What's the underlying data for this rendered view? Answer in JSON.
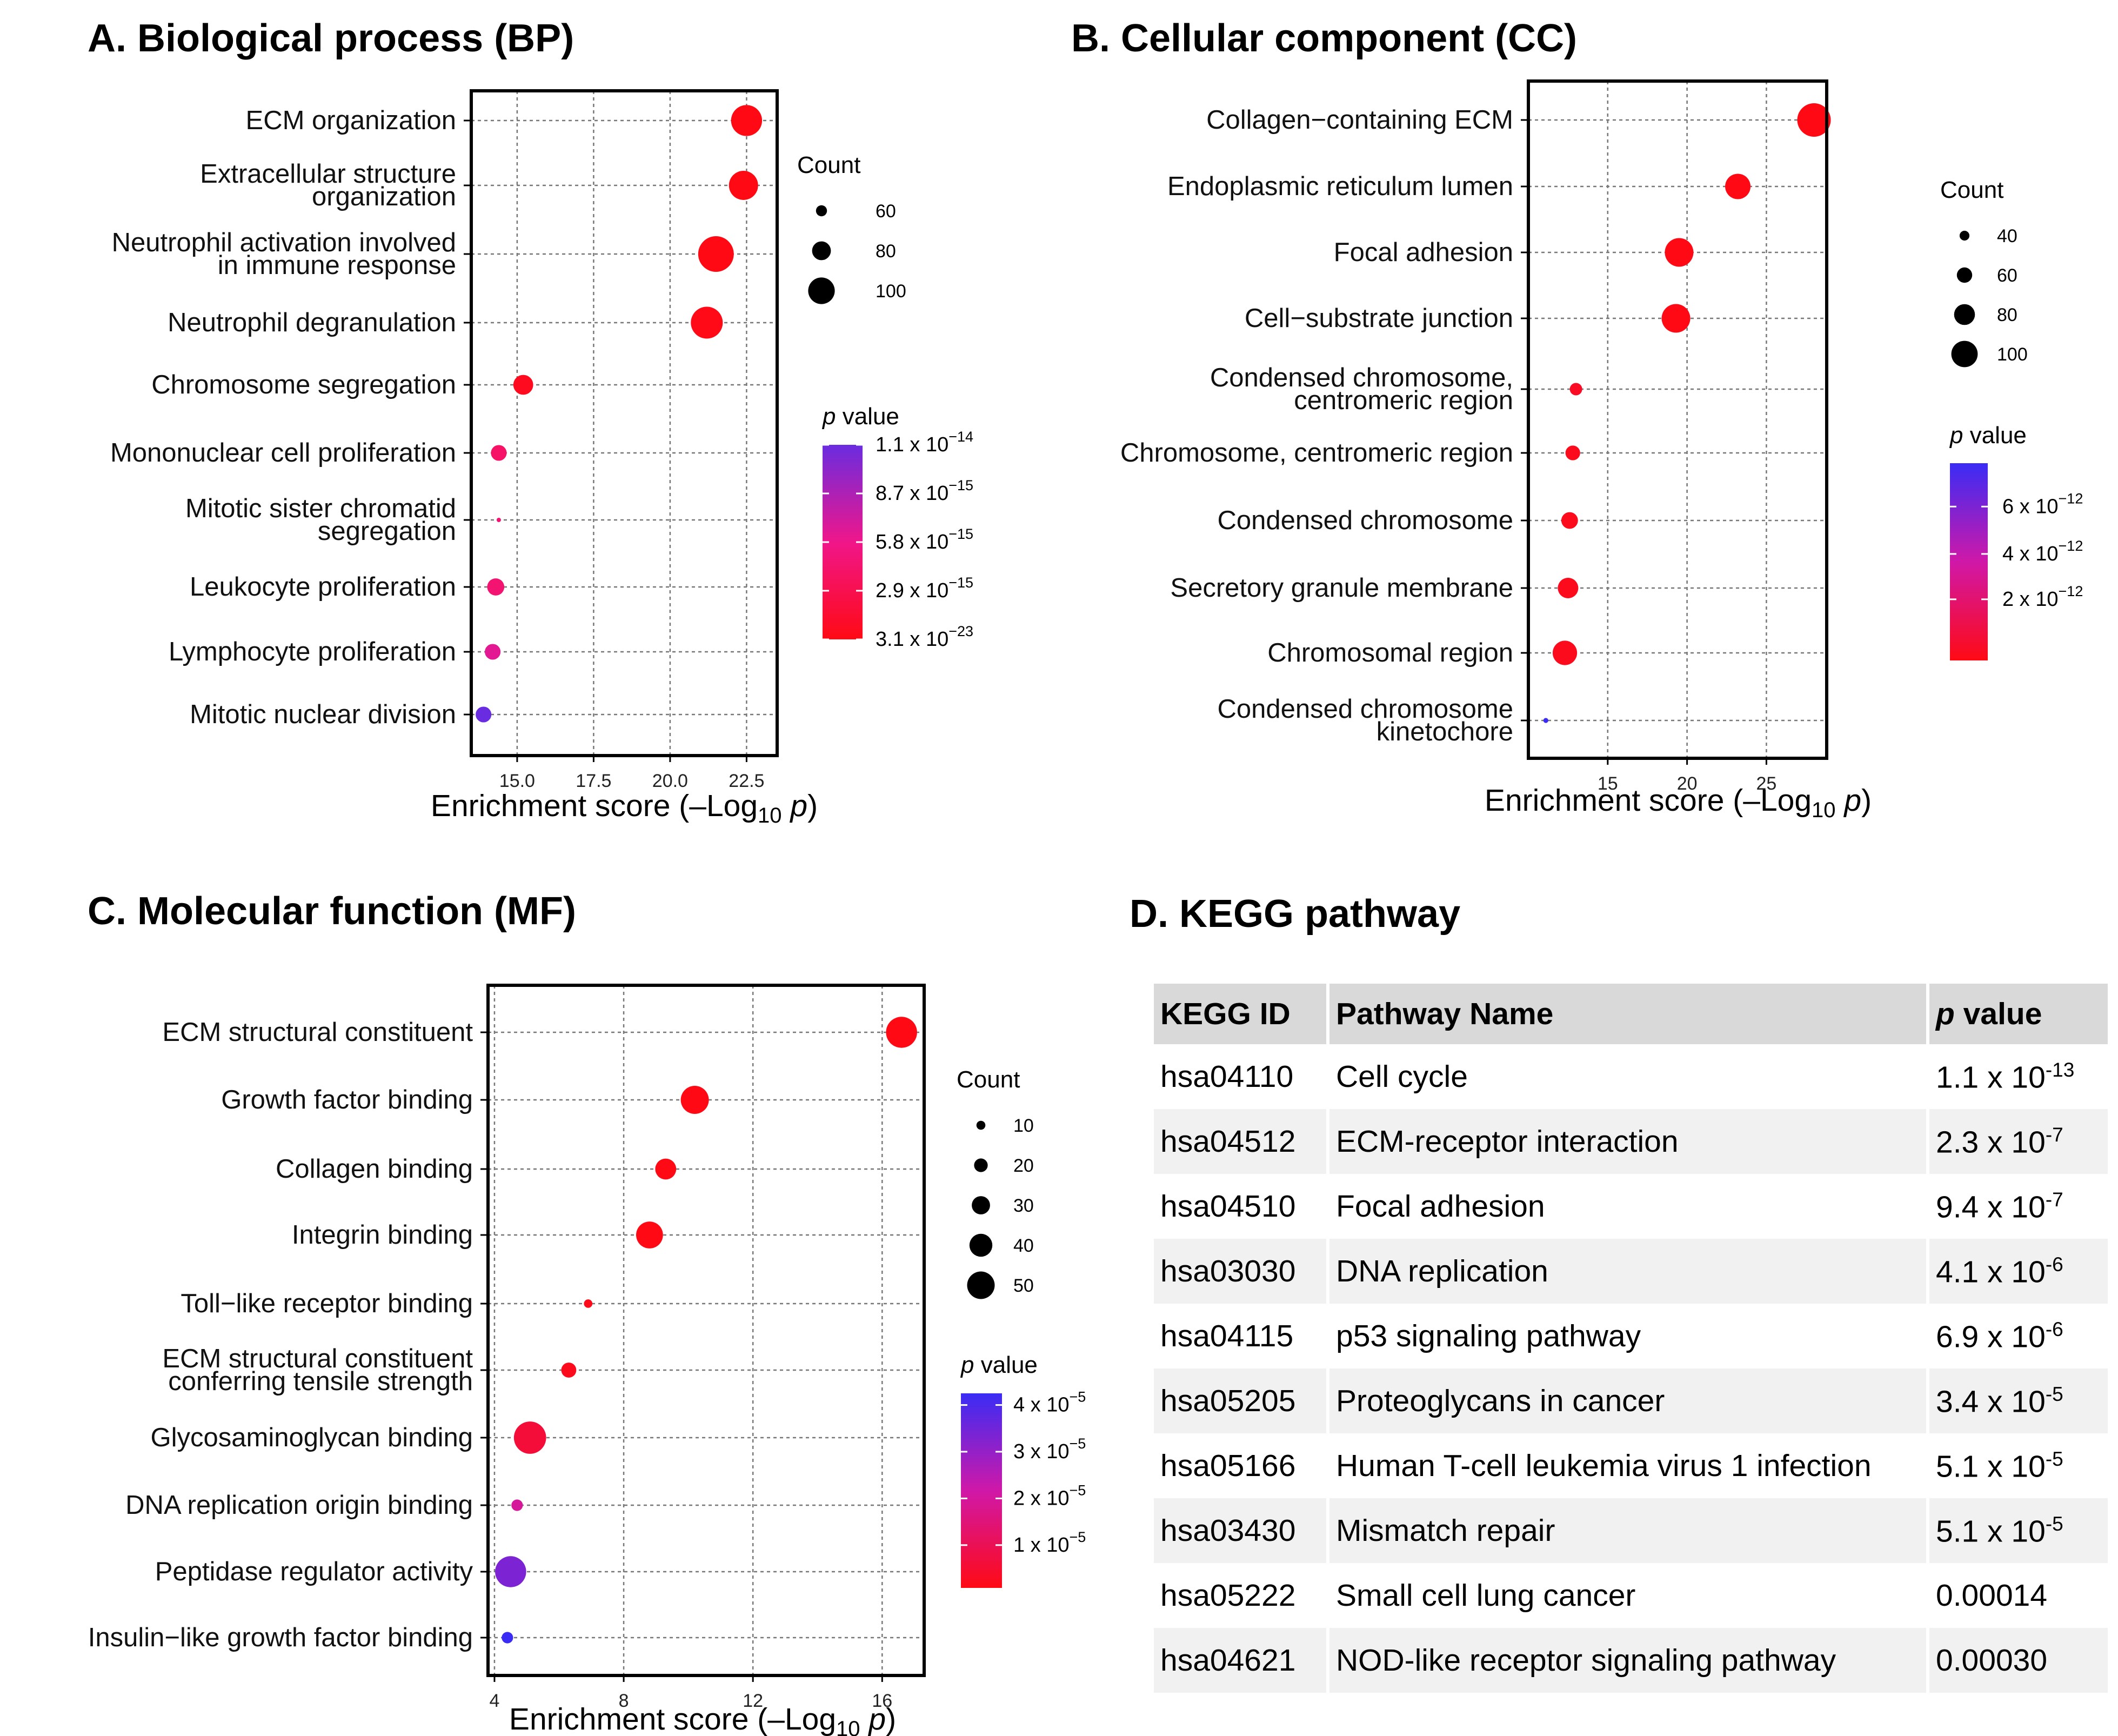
{
  "chart_data": [
    {
      "type": "scatter",
      "panel": "A",
      "title": "A. Biological process (BP)",
      "xlabel": "Enrichment score (–Log",
      "xlabel_sub": "10",
      "xlabel_p": "p",
      "xlabel_close": ")",
      "xlim": [
        13.5,
        23.5
      ],
      "xticks": [
        15.0,
        17.5,
        20.0,
        22.5
      ],
      "xtick_labels": [
        "15.0",
        "17.5",
        "20.0",
        "22.5"
      ],
      "grid": true,
      "categories": [
        [
          "ECM organization"
        ],
        [
          "Extracellular structure",
          "organization"
        ],
        [
          "Neutrophil activation involved",
          "in immune response"
        ],
        [
          "Neutrophil degranulation"
        ],
        [
          "Chromosome segregation"
        ],
        [
          "Mononuclear cell proliferation"
        ],
        [
          "Mitotic sister chromatid",
          "segregation"
        ],
        [
          "Leukocyte proliferation"
        ],
        [
          "Lymphocyte proliferation"
        ],
        [
          "Mitotic nuclear division"
        ]
      ],
      "points": [
        {
          "x": 22.5,
          "count": 100,
          "color_t": 0.0
        },
        {
          "x": 22.4,
          "count": 96,
          "color_t": 0.0
        },
        {
          "x": 21.5,
          "count": 110,
          "color_t": 0.0
        },
        {
          "x": 21.2,
          "count": 102,
          "color_t": 0.01
        },
        {
          "x": 15.2,
          "count": 76,
          "color_t": 0.05
        },
        {
          "x": 14.4,
          "count": 67,
          "color_t": 0.35
        },
        {
          "x": 14.4,
          "count": 42,
          "color_t": 0.4
        },
        {
          "x": 14.3,
          "count": 70,
          "color_t": 0.4
        },
        {
          "x": 14.2,
          "count": 67,
          "color_t": 0.55
        },
        {
          "x": 13.9,
          "count": 67,
          "color_t": 1.0
        }
      ],
      "size_legend": {
        "title": "Count",
        "values": [
          60,
          80,
          100
        ],
        "labels": [
          "60",
          "80",
          "100"
        ]
      },
      "color_legend": {
        "title_p": "p",
        "title_rest": " value",
        "top_color": "#6a2ce0",
        "mid_color": "#f0168a",
        "bottom_color": "#ff0a14",
        "ticks": [
          {
            "pos": 0.0,
            "mant": "1.1 x 10",
            "exp": "−14"
          },
          {
            "pos": 0.25,
            "mant": "8.7 x 10",
            "exp": "−15"
          },
          {
            "pos": 0.5,
            "mant": "5.8 x 10",
            "exp": "−15"
          },
          {
            "pos": 0.75,
            "mant": "2.9 x 10",
            "exp": "−15"
          },
          {
            "pos": 1.0,
            "mant": "3.1 x 10",
            "exp": "−23"
          }
        ]
      }
    },
    {
      "type": "scatter",
      "panel": "B",
      "title": "B. Cellular component (CC)",
      "xlabel": "Enrichment score (–Log",
      "xlabel_sub": "10",
      "xlabel_p": "p",
      "xlabel_close": ")",
      "xlim": [
        10.0,
        28.8
      ],
      "xticks": [
        15,
        20,
        25
      ],
      "xtick_labels": [
        "15",
        "20",
        "25"
      ],
      "grid": true,
      "categories": [
        [
          "Collagen−containing ECM"
        ],
        [
          "Endoplasmic reticulum lumen"
        ],
        [
          "Focal adhesion"
        ],
        [
          "Cell−substrate junction"
        ],
        [
          "Condensed chromosome,",
          "centromeric region"
        ],
        [
          "Chromosome, centromeric region"
        ],
        [
          "Condensed chromosome"
        ],
        [
          "Secretory granule membrane"
        ],
        [
          "Chromosomal region"
        ],
        [
          "Condensed chromosome",
          "kinetochore"
        ]
      ],
      "points": [
        {
          "x": 28.0,
          "count": 110,
          "color_t": 0.0
        },
        {
          "x": 23.2,
          "count": 85,
          "color_t": 0.0
        },
        {
          "x": 19.5,
          "count": 95,
          "color_t": 0.0
        },
        {
          "x": 19.3,
          "count": 95,
          "color_t": 0.0
        },
        {
          "x": 13.0,
          "count": 45,
          "color_t": 0.05
        },
        {
          "x": 12.8,
          "count": 52,
          "color_t": 0.03
        },
        {
          "x": 12.6,
          "count": 58,
          "color_t": 0.03
        },
        {
          "x": 12.5,
          "count": 70,
          "color_t": 0.03
        },
        {
          "x": 12.3,
          "count": 82,
          "color_t": 0.03
        },
        {
          "x": 11.1,
          "count": 22,
          "color_t": 1.0
        }
      ],
      "size_legend": {
        "title": "Count",
        "values": [
          40,
          60,
          80,
          100
        ],
        "labels": [
          "40",
          "60",
          "80",
          "100"
        ]
      },
      "color_legend": {
        "title_p": "p",
        "title_rest": " value",
        "top_color": "#3a2cf5",
        "mid_color": "#d018a8",
        "bottom_color": "#ff0a14",
        "ticks": [
          {
            "pos": 0.22,
            "mant": "6 x 10",
            "exp": "−12"
          },
          {
            "pos": 0.46,
            "mant": "4 x 10",
            "exp": "−12"
          },
          {
            "pos": 0.69,
            "mant": "2 x 10",
            "exp": "−12"
          }
        ]
      }
    },
    {
      "type": "scatter",
      "panel": "C",
      "title": "C. Molecular function (MF)",
      "xlabel": "Enrichment score (–Log",
      "xlabel_sub": "10",
      "xlabel_p": "p",
      "xlabel_close": ")",
      "xlim": [
        3.8,
        17.3
      ],
      "xticks": [
        4,
        8,
        12,
        16
      ],
      "xtick_labels": [
        "4",
        "8",
        "12",
        "16"
      ],
      "grid": true,
      "categories": [
        [
          "ECM structural constituent"
        ],
        [
          "Growth factor binding"
        ],
        [
          "Collagen binding"
        ],
        [
          "Integrin binding"
        ],
        [
          "Toll−like receptor binding"
        ],
        [
          "ECM structural constituent",
          "conferring tensile strength"
        ],
        [
          "Glycosaminoglycan binding"
        ],
        [
          "DNA replication origin binding"
        ],
        [
          "Peptidase regulator activity"
        ],
        [
          "Insulin−like growth factor binding"
        ]
      ],
      "points": [
        {
          "x": 16.6,
          "count": 45,
          "color_t": 0.0
        },
        {
          "x": 10.2,
          "count": 40,
          "color_t": 0.0
        },
        {
          "x": 9.3,
          "count": 28,
          "color_t": 0.0
        },
        {
          "x": 8.8,
          "count": 38,
          "color_t": 0.0
        },
        {
          "x": 6.9,
          "count": 7,
          "color_t": 0.02
        },
        {
          "x": 6.3,
          "count": 18,
          "color_t": 0.03
        },
        {
          "x": 5.1,
          "count": 47,
          "color_t": 0.12
        },
        {
          "x": 4.7,
          "count": 12,
          "color_t": 0.45
        },
        {
          "x": 4.5,
          "count": 45,
          "color_t": 0.78
        },
        {
          "x": 4.4,
          "count": 12,
          "color_t": 1.0
        }
      ],
      "size_legend": {
        "title": "Count",
        "values": [
          10,
          20,
          30,
          40,
          50
        ],
        "labels": [
          "10",
          "20",
          "30",
          "40",
          "50"
        ]
      },
      "color_legend": {
        "title_p": "p",
        "title_rest": " value",
        "top_color": "#3a2cf5",
        "mid_color": "#d018a8",
        "bottom_color": "#ff0a14",
        "ticks": [
          {
            "pos": 0.06,
            "mant": "4 x 10",
            "exp": "−5"
          },
          {
            "pos": 0.3,
            "mant": "3 x 10",
            "exp": "−5"
          },
          {
            "pos": 0.54,
            "mant": "2 x 10",
            "exp": "−5"
          },
          {
            "pos": 0.78,
            "mant": "1 x 10",
            "exp": "−5"
          }
        ]
      }
    },
    {
      "type": "table",
      "panel": "D",
      "title": "D. KEGG pathway",
      "headers": {
        "id": "KEGG ID",
        "name": "Pathway Name",
        "p_italic": "p",
        "p_rest": " value"
      },
      "rows": [
        {
          "id": "hsa04110",
          "name": "Cell cycle",
          "mant": "1.1 x 10",
          "exp": "-13"
        },
        {
          "id": "hsa04512",
          "name": "ECM-receptor interaction",
          "mant": "2.3 x 10",
          "exp": "-7"
        },
        {
          "id": "hsa04510",
          "name": "Focal adhesion",
          "mant": "9.4 x 10",
          "exp": "-7"
        },
        {
          "id": "hsa03030",
          "name": "DNA replication",
          "mant": "4.1 x 10",
          "exp": "-6"
        },
        {
          "id": "hsa04115",
          "name": "p53 signaling pathway",
          "mant": "6.9 x 10",
          "exp": "-6"
        },
        {
          "id": "hsa05205",
          "name": "Proteoglycans in cancer",
          "mant": "3.4 x 10",
          "exp": "-5"
        },
        {
          "id": "hsa05166",
          "name": "Human T-cell leukemia virus 1 infection",
          "mant": "5.1 x 10",
          "exp": "-5"
        },
        {
          "id": "hsa03430",
          "name": "Mismatch repair",
          "mant": "5.1 x 10",
          "exp": "-5"
        },
        {
          "id": "hsa05222",
          "name": "Small cell lung cancer",
          "mant": "0.00014",
          "exp": ""
        },
        {
          "id": "hsa04621",
          "name": "NOD-like receptor signaling pathway",
          "mant": "0.00030",
          "exp": ""
        }
      ]
    }
  ]
}
